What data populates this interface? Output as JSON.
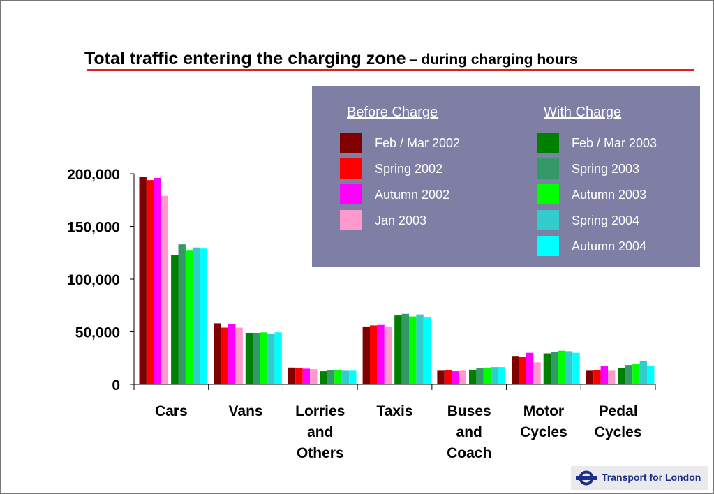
{
  "title": {
    "main": "Total traffic entering the charging zone",
    "sub": "– during charging hours"
  },
  "legend": {
    "before_heading": "Before Charge",
    "with_heading": "With Charge"
  },
  "logo": {
    "text": "Transport for London",
    "icon": "roundel-icon"
  },
  "colors": {
    "title_rule": "#e02020",
    "legend_bg": "#7f7fa6"
  },
  "chart_data": {
    "type": "bar",
    "title": "Total traffic entering the charging zone – during charging hours",
    "xlabel": "",
    "ylabel": "",
    "ylim": [
      0,
      200000
    ],
    "yticks": [
      0,
      50000,
      100000,
      150000,
      200000
    ],
    "ytick_labels": [
      "0",
      "50,000",
      "100,000",
      "150,000",
      "200,000"
    ],
    "grid": false,
    "legend_position": "top-right",
    "categories": [
      "Cars",
      "Vans",
      "Lorries and Others",
      "Taxis",
      "Buses and Coach",
      "Motor Cycles",
      "Pedal Cycles"
    ],
    "series": [
      {
        "name": "Feb / Mar 2002",
        "group": "Before Charge",
        "color": "#800000",
        "values": [
          197000,
          58000,
          16000,
          55000,
          13000,
          27000,
          13000
        ]
      },
      {
        "name": "Spring 2002",
        "group": "Before Charge",
        "color": "#ff0000",
        "values": [
          194000,
          54000,
          15500,
          56000,
          13500,
          26000,
          13500
        ]
      },
      {
        "name": "Autumn 2002",
        "group": "Before Charge",
        "color": "#ff00ff",
        "values": [
          196000,
          57000,
          15000,
          56500,
          12500,
          30000,
          17500
        ]
      },
      {
        "name": "Jan 2003",
        "group": "Before Charge",
        "color": "#ff99cc",
        "values": [
          179000,
          54000,
          14500,
          55000,
          13000,
          21000,
          13000
        ]
      },
      {
        "name": "Feb / Mar 2003",
        "group": "With Charge",
        "color": "#008000",
        "values": [
          123000,
          49000,
          12500,
          65500,
          14000,
          29500,
          15500
        ]
      },
      {
        "name": "Spring 2003",
        "group": "With Charge",
        "color": "#339966",
        "values": [
          133000,
          49000,
          13500,
          67000,
          15500,
          30500,
          18500
        ]
      },
      {
        "name": "Autumn 2003",
        "group": "With Charge",
        "color": "#00ff00",
        "values": [
          127000,
          49500,
          13500,
          64500,
          16000,
          32000,
          19500
        ]
      },
      {
        "name": "Spring 2004",
        "group": "With Charge",
        "color": "#33cccc",
        "values": [
          130000,
          48000,
          13000,
          66500,
          16500,
          31500,
          22000
        ]
      },
      {
        "name": "Autumn 2004",
        "group": "With Charge",
        "color": "#00ffff",
        "values": [
          129000,
          49500,
          13000,
          63500,
          16500,
          30000,
          18000
        ]
      }
    ]
  }
}
